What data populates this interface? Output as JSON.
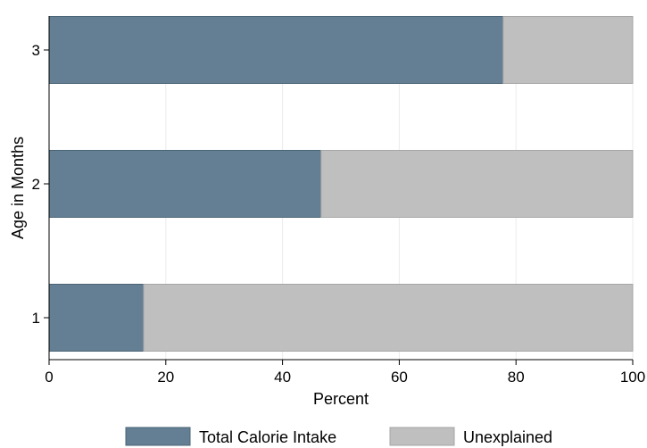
{
  "chart_data": {
    "type": "bar",
    "orientation": "horizontal",
    "stacked": true,
    "categories": [
      "1",
      "2",
      "3"
    ],
    "series": [
      {
        "name": "Total Calorie Intake",
        "values": [
          16.2,
          46.6,
          77.8
        ],
        "color": "#647f94"
      },
      {
        "name": "Unexplained",
        "values": [
          83.8,
          53.4,
          22.2
        ],
        "color": "#bfbfbf"
      }
    ],
    "xlabel": "Percent",
    "ylabel": "Age in Months",
    "xlim": [
      0,
      100
    ],
    "xticks": [
      0,
      20,
      40,
      60,
      80,
      100
    ],
    "grid": true,
    "legend_position": "bottom"
  },
  "colors": {
    "grid": "#ebebeb",
    "bar_outline_primary": "#4a6475",
    "bar_outline_secondary": "#a6a6a6",
    "axis": "#000000"
  }
}
